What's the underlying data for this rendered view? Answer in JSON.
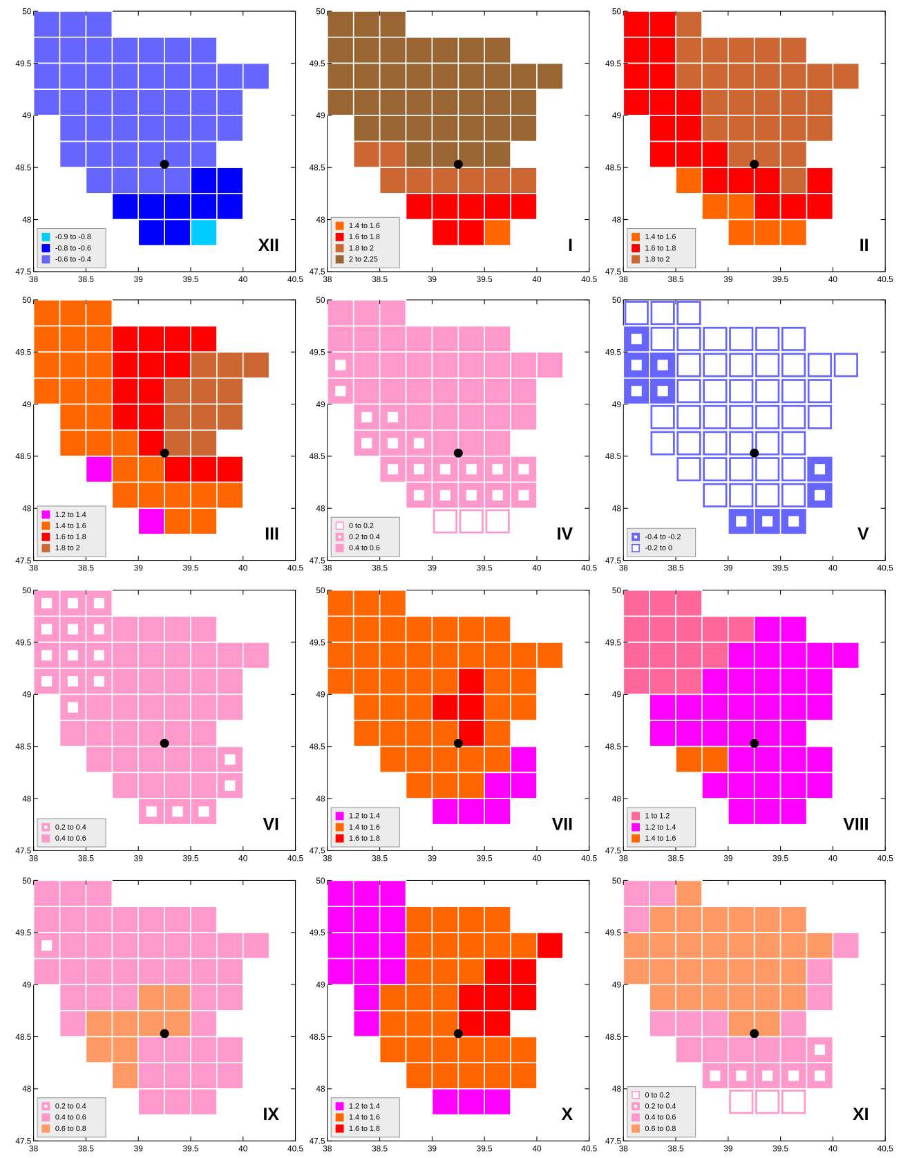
{
  "xlim": [
    38,
    40.5
  ],
  "ylim": [
    47.5,
    50
  ],
  "xticks": [
    38,
    38.5,
    39,
    39.5,
    40,
    40.5
  ],
  "yticks": [
    47.5,
    48,
    48.5,
    49,
    49.5,
    50
  ],
  "grid": [
    {
      "lat": 49.75,
      "lons": [
        38,
        38.25,
        38.5
      ]
    },
    {
      "lat": 49.5,
      "lons": [
        38,
        38.25,
        38.5,
        38.75,
        39,
        39.25,
        39.5
      ]
    },
    {
      "lat": 49.25,
      "lons": [
        38,
        38.25,
        38.5,
        38.75,
        39,
        39.25,
        39.5,
        39.75,
        40
      ]
    },
    {
      "lat": 49,
      "lons": [
        38,
        38.25,
        38.5,
        38.75,
        39,
        39.25,
        39.5,
        39.75
      ]
    },
    {
      "lat": 48.75,
      "lons": [
        38.25,
        38.5,
        38.75,
        39,
        39.25,
        39.5,
        39.75
      ]
    },
    {
      "lat": 48.5,
      "lons": [
        38.25,
        38.5,
        38.75,
        39,
        39.25,
        39.5
      ]
    },
    {
      "lat": 48.25,
      "lons": [
        38.5,
        38.75,
        39,
        39.25,
        39.5,
        39.75
      ]
    },
    {
      "lat": 48,
      "lons": [
        38.75,
        39,
        39.25,
        39.5,
        39.75
      ]
    },
    {
      "lat": 47.75,
      "lons": [
        39,
        39.25,
        39.5
      ]
    }
  ],
  "site": {
    "lon": 39.25,
    "lat": 48.53
  },
  "panels": [
    {
      "label": "XII",
      "legend": [
        {
          "label": "-0.9 to -0.8",
          "color": "#00ccff",
          "style": "fill"
        },
        {
          "label": "-0.8 to -0.6",
          "color": "#0000ff",
          "style": "fill"
        },
        {
          "label": "-0.6 to -0.4",
          "color": "#6666ff",
          "style": "fill"
        }
      ],
      "classes": [
        [
          2,
          2,
          2
        ],
        [
          2,
          2,
          2,
          2,
          2,
          2,
          2
        ],
        [
          2,
          2,
          2,
          2,
          2,
          2,
          2,
          2,
          2
        ],
        [
          2,
          2,
          2,
          2,
          2,
          2,
          2,
          2
        ],
        [
          2,
          2,
          2,
          2,
          2,
          2,
          2
        ],
        [
          2,
          2,
          2,
          2,
          2,
          2
        ],
        [
          2,
          2,
          2,
          2,
          1,
          1
        ],
        [
          1,
          1,
          1,
          1,
          1
        ],
        [
          1,
          1,
          0
        ]
      ]
    },
    {
      "label": "I",
      "legend": [
        {
          "label": "1.4 to 1.6",
          "color": "#ff6600",
          "style": "fill"
        },
        {
          "label": "1.6 to 1.8",
          "color": "#ff0000",
          "style": "fill"
        },
        {
          "label": "1.8 to 2",
          "color": "#cc6633",
          "style": "fill"
        },
        {
          "label": "2 to 2.25",
          "color": "#996633",
          "style": "fill"
        }
      ],
      "classes": [
        [
          3,
          3,
          3
        ],
        [
          3,
          3,
          3,
          3,
          3,
          3,
          3
        ],
        [
          3,
          3,
          3,
          3,
          3,
          3,
          3,
          3,
          3
        ],
        [
          3,
          3,
          3,
          3,
          3,
          3,
          3,
          3
        ],
        [
          3,
          3,
          3,
          3,
          3,
          3,
          3
        ],
        [
          2,
          2,
          3,
          3,
          3,
          3
        ],
        [
          2,
          2,
          2,
          2,
          2,
          2
        ],
        [
          1,
          1,
          1,
          1,
          1
        ],
        [
          1,
          1,
          0
        ]
      ]
    },
    {
      "label": "II",
      "legend": [
        {
          "label": "1.4 to 1.6",
          "color": "#ff6600",
          "style": "fill"
        },
        {
          "label": "1.6 to 1.8",
          "color": "#ff0000",
          "style": "fill"
        },
        {
          "label": "1.8 to 2",
          "color": "#cc6633",
          "style": "fill"
        }
      ],
      "classes": [
        [
          1,
          1,
          2
        ],
        [
          1,
          1,
          2,
          2,
          2,
          2,
          2
        ],
        [
          1,
          1,
          2,
          2,
          2,
          2,
          2,
          2,
          2
        ],
        [
          1,
          1,
          1,
          2,
          2,
          2,
          2,
          2
        ],
        [
          1,
          1,
          2,
          2,
          2,
          2,
          2
        ],
        [
          1,
          1,
          1,
          2,
          2,
          2
        ],
        [
          0,
          1,
          1,
          1,
          2,
          1
        ],
        [
          0,
          0,
          1,
          1,
          1
        ],
        [
          0,
          0,
          0
        ]
      ]
    },
    {
      "label": "III",
      "legend": [
        {
          "label": "1.2 to 1.4",
          "color": "#ff00ff",
          "style": "fill"
        },
        {
          "label": "1.4 to 1.6",
          "color": "#ff6600",
          "style": "fill"
        },
        {
          "label": "1.6 to 1.8",
          "color": "#ff0000",
          "style": "fill"
        },
        {
          "label": "1.8 to 2",
          "color": "#cc6633",
          "style": "fill"
        }
      ],
      "classes": [
        [
          1,
          1,
          1
        ],
        [
          1,
          1,
          1,
          2,
          2,
          2,
          2
        ],
        [
          1,
          1,
          1,
          2,
          2,
          2,
          3,
          3,
          3
        ],
        [
          1,
          1,
          1,
          2,
          2,
          3,
          3,
          3
        ],
        [
          1,
          1,
          2,
          2,
          3,
          3,
          3
        ],
        [
          1,
          1,
          1,
          2,
          3,
          3
        ],
        [
          0,
          1,
          1,
          2,
          2,
          2
        ],
        [
          1,
          1,
          1,
          1,
          1
        ],
        [
          0,
          1,
          1
        ]
      ]
    },
    {
      "label": "IV",
      "legend": [
        {
          "label": "0 to 0.2",
          "color": "#ff99cc",
          "style": "hollow"
        },
        {
          "label": "0.2 to 0.4",
          "color": "#ff99cc",
          "style": "dot"
        },
        {
          "label": "0.4 to 0.6",
          "color": "#ff99cc",
          "style": "fill"
        }
      ],
      "classes": [
        [
          2,
          2,
          2
        ],
        [
          2,
          2,
          2,
          2,
          2,
          2,
          2
        ],
        [
          1,
          2,
          2,
          2,
          2,
          2,
          2,
          2,
          2
        ],
        [
          1,
          2,
          2,
          2,
          2,
          2,
          2,
          2
        ],
        [
          1,
          1,
          2,
          2,
          2,
          2,
          2
        ],
        [
          1,
          1,
          1,
          2,
          2,
          2
        ],
        [
          1,
          1,
          1,
          1,
          1,
          1
        ],
        [
          1,
          1,
          1,
          1,
          1
        ],
        [
          0,
          0,
          0
        ]
      ]
    },
    {
      "label": "V",
      "legend": [
        {
          "label": "-0.4 to -0.2",
          "color": "#6666ff",
          "style": "dot"
        },
        {
          "label": "-0.2 to 0",
          "color": "#6666ff",
          "style": "hollow"
        }
      ],
      "classes": [
        [
          1,
          1,
          1
        ],
        [
          0,
          1,
          1,
          1,
          1,
          1,
          1
        ],
        [
          0,
          0,
          1,
          1,
          1,
          1,
          1,
          1,
          1
        ],
        [
          0,
          0,
          1,
          1,
          1,
          1,
          1,
          1
        ],
        [
          1,
          1,
          1,
          1,
          1,
          1,
          1
        ],
        [
          1,
          1,
          1,
          1,
          1,
          1
        ],
        [
          1,
          1,
          1,
          1,
          1,
          0
        ],
        [
          1,
          1,
          1,
          1,
          0
        ],
        [
          0,
          0,
          0
        ]
      ]
    },
    {
      "label": "VI",
      "legend": [
        {
          "label": "0.2 to 0.4",
          "color": "#ff99cc",
          "style": "dot"
        },
        {
          "label": "0.4 to 0.6",
          "color": "#ff99cc",
          "style": "fill"
        }
      ],
      "classes": [
        [
          0,
          0,
          0
        ],
        [
          0,
          0,
          0,
          1,
          1,
          1,
          1
        ],
        [
          0,
          0,
          0,
          1,
          1,
          1,
          1,
          1,
          1
        ],
        [
          0,
          0,
          0,
          1,
          1,
          1,
          1,
          1
        ],
        [
          0,
          1,
          1,
          1,
          1,
          1,
          1
        ],
        [
          1,
          1,
          1,
          1,
          1,
          1
        ],
        [
          1,
          1,
          1,
          1,
          1,
          0
        ],
        [
          1,
          1,
          1,
          1,
          0
        ],
        [
          0,
          0,
          0
        ]
      ]
    },
    {
      "label": "VII",
      "legend": [
        {
          "label": "1.2 to 1.4",
          "color": "#ff00ff",
          "style": "fill"
        },
        {
          "label": "1.4 to 1.6",
          "color": "#ff6600",
          "style": "fill"
        },
        {
          "label": "1.6 to 1.8",
          "color": "#ff0000",
          "style": "fill"
        }
      ],
      "classes": [
        [
          1,
          1,
          1
        ],
        [
          1,
          1,
          1,
          1,
          1,
          1,
          1
        ],
        [
          1,
          1,
          1,
          1,
          1,
          1,
          1,
          1,
          1
        ],
        [
          1,
          1,
          1,
          1,
          1,
          2,
          1,
          1
        ],
        [
          1,
          1,
          1,
          2,
          2,
          1,
          1
        ],
        [
          1,
          1,
          1,
          1,
          2,
          1
        ],
        [
          1,
          1,
          1,
          1,
          1,
          0
        ],
        [
          1,
          1,
          1,
          0,
          0
        ],
        [
          0,
          0,
          0
        ]
      ]
    },
    {
      "label": "VIII",
      "legend": [
        {
          "label": "1 to 1.2",
          "color": "#ff6699",
          "style": "fill"
        },
        {
          "label": "1.2 to 1.4",
          "color": "#ff00ff",
          "style": "fill"
        },
        {
          "label": "1.4 to 1.6",
          "color": "#ff6600",
          "style": "fill"
        }
      ],
      "classes": [
        [
          0,
          0,
          0
        ],
        [
          0,
          0,
          0,
          0,
          0,
          1,
          1
        ],
        [
          0,
          0,
          0,
          0,
          1,
          1,
          1,
          1,
          1
        ],
        [
          0,
          0,
          0,
          1,
          1,
          1,
          1,
          1
        ],
        [
          1,
          1,
          1,
          1,
          1,
          1,
          1
        ],
        [
          1,
          1,
          1,
          1,
          1,
          1
        ],
        [
          2,
          2,
          1,
          1,
          1,
          1
        ],
        [
          1,
          1,
          1,
          1,
          1
        ],
        [
          1,
          1,
          1
        ]
      ]
    },
    {
      "label": "IX",
      "legend": [
        {
          "label": "0.2 to 0.4",
          "color": "#ff99cc",
          "style": "dot"
        },
        {
          "label": "0.4 to 0.6",
          "color": "#ff99cc",
          "style": "fill"
        },
        {
          "label": "0.6 to 0.8",
          "color": "#ff9966",
          "style": "fill"
        }
      ],
      "classes": [
        [
          1,
          1,
          1
        ],
        [
          1,
          1,
          1,
          1,
          1,
          1,
          1
        ],
        [
          0,
          1,
          1,
          1,
          1,
          1,
          1,
          1,
          1
        ],
        [
          1,
          1,
          1,
          1,
          1,
          1,
          1,
          1
        ],
        [
          1,
          1,
          1,
          2,
          2,
          1,
          1
        ],
        [
          1,
          2,
          2,
          2,
          2,
          1
        ],
        [
          2,
          2,
          1,
          1,
          1,
          1
        ],
        [
          2,
          1,
          1,
          1,
          1
        ],
        [
          1,
          1,
          1
        ]
      ]
    },
    {
      "label": "X",
      "legend": [
        {
          "label": "1.2 to 1.4",
          "color": "#ff00ff",
          "style": "fill"
        },
        {
          "label": "1.4 to 1.6",
          "color": "#ff6600",
          "style": "fill"
        },
        {
          "label": "1.6 to 1.8",
          "color": "#ff0000",
          "style": "fill"
        }
      ],
      "classes": [
        [
          0,
          0,
          0
        ],
        [
          0,
          0,
          0,
          1,
          1,
          1,
          1
        ],
        [
          0,
          0,
          0,
          1,
          1,
          1,
          1,
          1,
          2
        ],
        [
          0,
          0,
          0,
          1,
          1,
          1,
          2,
          2
        ],
        [
          0,
          1,
          1,
          1,
          2,
          2,
          2
        ],
        [
          0,
          1,
          1,
          1,
          2,
          2
        ],
        [
          1,
          1,
          1,
          1,
          1,
          1
        ],
        [
          1,
          1,
          1,
          1,
          1
        ],
        [
          0,
          0,
          0
        ]
      ]
    },
    {
      "label": "XI",
      "legend": [
        {
          "label": "0 to 0.2",
          "color": "#ff99cc",
          "style": "hollow"
        },
        {
          "label": "0.2 to 0.4",
          "color": "#ff99cc",
          "style": "dot"
        },
        {
          "label": "0.4 to 0.6",
          "color": "#ff99cc",
          "style": "fill"
        },
        {
          "label": "0.6 to 0.8",
          "color": "#ff9966",
          "style": "fill"
        }
      ],
      "classes": [
        [
          2,
          2,
          3
        ],
        [
          2,
          3,
          3,
          3,
          3,
          3,
          3
        ],
        [
          3,
          3,
          3,
          3,
          3,
          3,
          3,
          3,
          2
        ],
        [
          3,
          3,
          3,
          3,
          3,
          3,
          3,
          2
        ],
        [
          3,
          3,
          3,
          3,
          3,
          3,
          2
        ],
        [
          2,
          2,
          2,
          3,
          3,
          2
        ],
        [
          2,
          2,
          2,
          2,
          2,
          1
        ],
        [
          1,
          1,
          1,
          1,
          1
        ],
        [
          0,
          0,
          0
        ]
      ]
    }
  ]
}
